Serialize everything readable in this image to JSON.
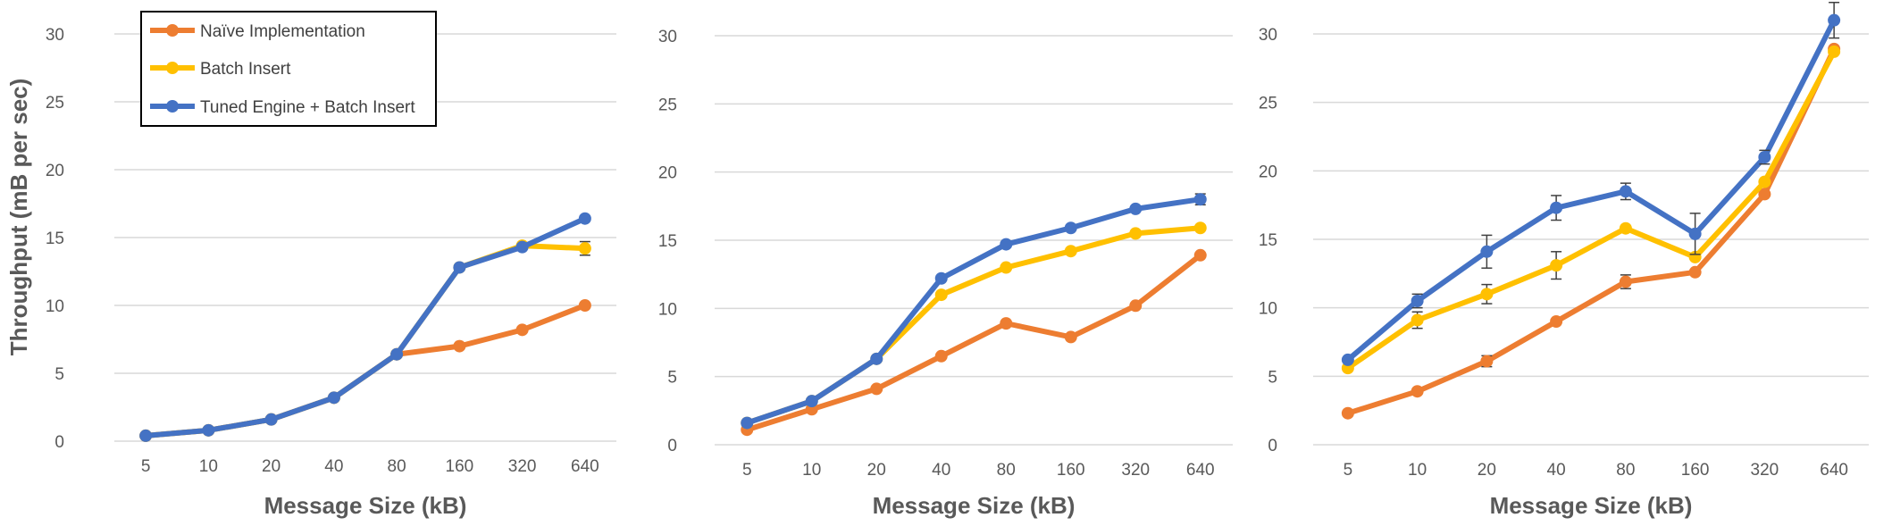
{
  "colors": {
    "naive": "#ED7D31",
    "batch": "#FFC000",
    "tuned": "#4472C4",
    "text": "#595959",
    "grid": "#D9D9D9"
  },
  "legend": {
    "placement": "top-left of first panel, boxed",
    "entries": [
      "Naïve Implementation",
      "Batch Insert",
      "Tuned Engine + Batch Insert"
    ]
  },
  "chart_data": [
    {
      "type": "line",
      "categories": [
        "5",
        "10",
        "20",
        "40",
        "80",
        "160",
        "320",
        "640"
      ],
      "xlabel": "Message Size (kB)",
      "ylabel": "Throughput (mB per sec)",
      "ylim": [
        0,
        30
      ],
      "yticks": [
        0,
        5,
        10,
        15,
        20,
        25,
        30
      ],
      "grid": true,
      "series": [
        {
          "name": "Naïve Implementation",
          "values": [
            0.4,
            0.8,
            1.6,
            3.2,
            6.4,
            7.0,
            8.2,
            10.0
          ],
          "errors": [
            0,
            0,
            0,
            0,
            0,
            0,
            0,
            0
          ]
        },
        {
          "name": "Batch Insert",
          "values": [
            0.4,
            0.8,
            1.6,
            3.2,
            6.4,
            12.8,
            14.4,
            14.2
          ],
          "errors": [
            0,
            0,
            0,
            0,
            0,
            0,
            0,
            0.5
          ]
        },
        {
          "name": "Tuned Engine + Batch Insert",
          "values": [
            0.4,
            0.8,
            1.6,
            3.2,
            6.4,
            12.8,
            14.3,
            16.4
          ],
          "errors": [
            0,
            0,
            0,
            0,
            0,
            0,
            0,
            0
          ]
        }
      ]
    },
    {
      "type": "line",
      "categories": [
        "5",
        "10",
        "20",
        "40",
        "80",
        "160",
        "320",
        "640"
      ],
      "xlabel": "Message Size (kB)",
      "ylabel": "",
      "ylim": [
        0,
        30
      ],
      "yticks": [
        0,
        5,
        10,
        15,
        20,
        25,
        30
      ],
      "grid": true,
      "series": [
        {
          "name": "Naïve Implementation",
          "values": [
            1.1,
            2.6,
            4.1,
            6.5,
            8.9,
            7.9,
            10.2,
            13.9
          ],
          "errors": [
            0,
            0,
            0,
            0,
            0,
            0,
            0,
            0
          ]
        },
        {
          "name": "Batch Insert",
          "values": [
            1.6,
            3.2,
            6.3,
            11.0,
            13.0,
            14.2,
            15.5,
            15.9
          ],
          "errors": [
            0,
            0,
            0,
            0,
            0,
            0,
            0,
            0
          ]
        },
        {
          "name": "Tuned Engine + Batch Insert",
          "values": [
            1.6,
            3.2,
            6.3,
            12.2,
            14.7,
            15.9,
            17.3,
            18.0
          ],
          "errors": [
            0,
            0,
            0,
            0,
            0,
            0,
            0,
            0.4
          ]
        }
      ]
    },
    {
      "type": "line",
      "categories": [
        "5",
        "10",
        "20",
        "40",
        "80",
        "160",
        "320",
        "640"
      ],
      "xlabel": "Message Size (kB)",
      "ylabel": "",
      "ylim": [
        0,
        30
      ],
      "yticks": [
        0,
        5,
        10,
        15,
        20,
        25,
        30
      ],
      "grid": true,
      "series": [
        {
          "name": "Naïve Implementation",
          "values": [
            2.3,
            3.9,
            6.1,
            9.0,
            11.9,
            12.6,
            18.3,
            28.9
          ],
          "errors": [
            0,
            0,
            0.4,
            0,
            0.5,
            0,
            0,
            0
          ]
        },
        {
          "name": "Batch Insert",
          "values": [
            5.6,
            9.1,
            11.0,
            13.1,
            15.8,
            13.7,
            19.2,
            28.7
          ],
          "errors": [
            0,
            0.6,
            0.7,
            1.0,
            0,
            0,
            0,
            0
          ]
        },
        {
          "name": "Tuned Engine + Batch Insert",
          "values": [
            6.2,
            10.5,
            14.1,
            17.3,
            18.5,
            15.4,
            21.0,
            31.0
          ],
          "errors": [
            0,
            0.5,
            1.2,
            0.9,
            0.6,
            1.5,
            0.5,
            1.3
          ]
        }
      ]
    }
  ]
}
